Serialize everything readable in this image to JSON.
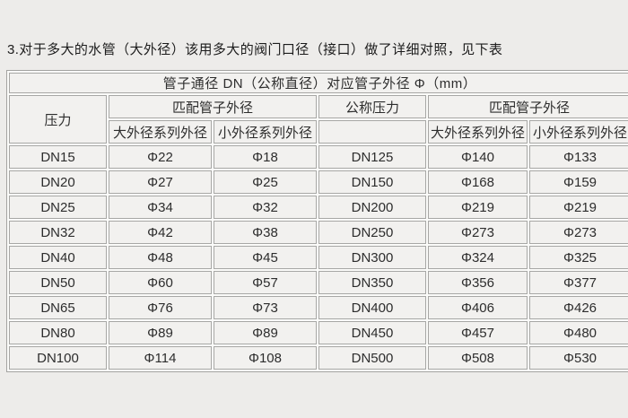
{
  "page": {
    "heading": "3.对于多大的水管（大外径）该用多大的阀门口径（接口）做了详细对照，见下表"
  },
  "table": {
    "caption": "管子通径 DN（公称直径）对应管子外径 Φ（mm）",
    "headers": {
      "pressure": "压力",
      "match_outer_left": "匹配管子外径",
      "nominal_pressure": "公称压力",
      "match_outer_right": "匹配管子外径",
      "large_series_left": "大外径系列外径",
      "small_series_left": "小外径系列外径",
      "large_series_right": "大外径系列外径",
      "small_series_right": "小外径系列外径"
    },
    "rows": [
      [
        "DN15",
        "Φ22",
        "Φ18",
        "DN125",
        "Φ140",
        "Φ133"
      ],
      [
        "DN20",
        "Φ27",
        "Φ25",
        "DN150",
        "Φ168",
        "Φ159"
      ],
      [
        "DN25",
        "Φ34",
        "Φ32",
        "DN200",
        "Φ219",
        "Φ219"
      ],
      [
        "DN32",
        "Φ42",
        "Φ38",
        "DN250",
        "Φ273",
        "Φ273"
      ],
      [
        "DN40",
        "Φ48",
        "Φ45",
        "DN300",
        "Φ324",
        "Φ325"
      ],
      [
        "DN50",
        "Φ60",
        "Φ57",
        "DN350",
        "Φ356",
        "Φ377"
      ],
      [
        "DN65",
        "Φ76",
        "Φ73",
        "DN400",
        "Φ406",
        "Φ426"
      ],
      [
        "DN80",
        "Φ89",
        "Φ89",
        "DN450",
        "Φ457",
        "Φ480"
      ],
      [
        "DN100",
        "Φ114",
        "Φ108",
        "DN500",
        "Φ508",
        "Φ530"
      ]
    ],
    "colors": {
      "page_bg": "#edecea",
      "cell_bg": "#f2f1ef",
      "cell_border": "#a7a7a5",
      "gap": "#fbfbf9",
      "text": "#2d2d2d"
    }
  }
}
